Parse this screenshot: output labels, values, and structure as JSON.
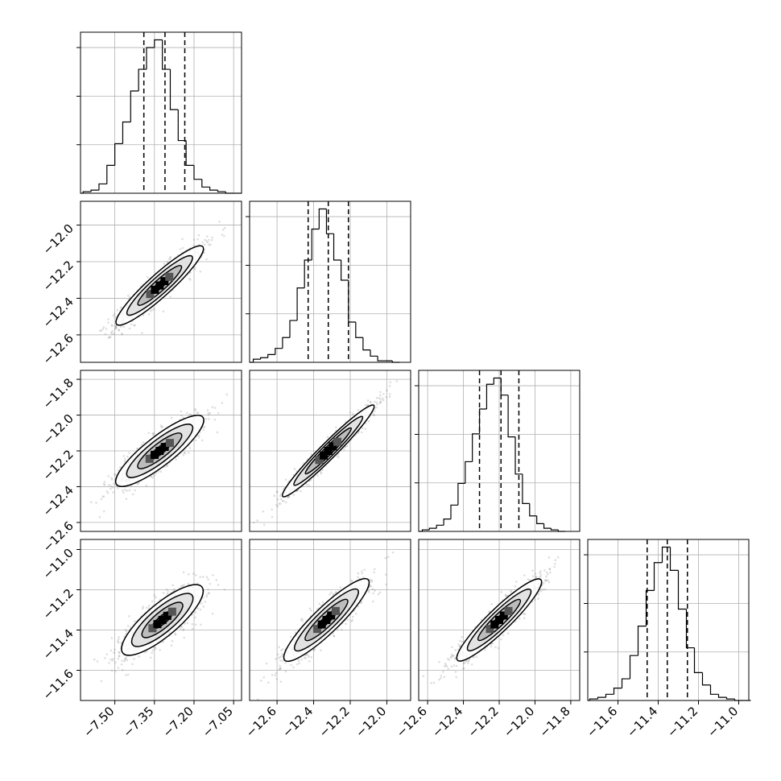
{
  "chart_data": {
    "type": "corner",
    "title": "",
    "parameters": [
      {
        "index": 0,
        "xlim": [
          -7.63,
          -7.02
        ],
        "quantiles": [
          -7.39,
          -7.31,
          -7.235
        ],
        "bins": [
          -7.62,
          -7.59,
          -7.56,
          -7.53,
          -7.5,
          -7.47,
          -7.44,
          -7.41,
          -7.38,
          -7.35,
          -7.32,
          -7.29,
          -7.26,
          -7.23,
          -7.2,
          -7.17,
          -7.14,
          -7.11,
          -7.08,
          -7.05
        ],
        "counts": [
          1,
          2,
          6,
          18,
          32,
          46,
          66,
          80,
          94,
          99,
          80,
          54,
          34,
          18,
          9,
          4,
          2,
          1,
          0,
          0
        ],
        "xticks": [
          -7.5,
          -7.35,
          -7.2,
          -7.05
        ],
        "xtick_labels": [
          "−7.50",
          "−7.35",
          "−7.20",
          "−7.05"
        ]
      },
      {
        "index": 1,
        "xlim": [
          -12.75,
          -11.87
        ],
        "quantiles": [
          -12.43,
          -12.32,
          -12.21
        ],
        "bins": [
          -12.73,
          -12.69,
          -12.65,
          -12.61,
          -12.57,
          -12.53,
          -12.49,
          -12.45,
          -12.41,
          -12.37,
          -12.33,
          -12.29,
          -12.25,
          -12.21,
          -12.17,
          -12.13,
          -12.09,
          -12.05,
          -12.01,
          -11.97
        ],
        "counts": [
          2,
          3,
          5,
          9,
          16,
          27,
          48,
          66,
          86,
          99,
          83,
          66,
          53,
          26,
          16,
          8,
          4,
          1,
          1,
          0
        ],
        "xticks": [
          -12.6,
          -12.4,
          -12.2,
          -12.0
        ],
        "xtick_labels": [
          "−12.6",
          "−12.4",
          "−12.2",
          "−12.0"
        ],
        "yticks": [
          -12.6,
          -12.4,
          -12.2,
          -12.0
        ],
        "ytick_labels": [
          "−12.6",
          "−12.4",
          "−12.2",
          "−12.0"
        ]
      },
      {
        "index": 2,
        "xlim": [
          -12.65,
          -11.75
        ],
        "quantiles": [
          -12.31,
          -12.19,
          -12.09
        ],
        "bins": [
          -12.63,
          -12.59,
          -12.55,
          -12.51,
          -12.47,
          -12.43,
          -12.39,
          -12.35,
          -12.31,
          -12.27,
          -12.23,
          -12.19,
          -12.15,
          -12.11,
          -12.07,
          -12.03,
          -11.99,
          -11.95,
          -11.91,
          -11.87
        ],
        "counts": [
          1,
          2,
          4,
          8,
          17,
          31,
          45,
          63,
          79,
          95,
          99,
          88,
          61,
          37,
          18,
          10,
          5,
          2,
          1,
          0
        ],
        "xticks": [
          -12.6,
          -12.4,
          -12.2,
          -12.0,
          -11.8
        ],
        "xtick_labels": [
          "−12.6",
          "−12.4",
          "−12.2",
          "−12.0",
          "−11.8"
        ],
        "yticks": [
          -12.6,
          -12.4,
          -12.2,
          -12.0,
          -11.8
        ],
        "ytick_labels": [
          "−12.6",
          "−12.4",
          "−12.2",
          "−12.0",
          "−11.8"
        ]
      },
      {
        "index": 3,
        "xlim": [
          -11.75,
          -10.95
        ],
        "quantiles": [
          -11.455,
          -11.355,
          -11.255
        ],
        "bins": [
          -11.74,
          -11.7,
          -11.66,
          -11.62,
          -11.58,
          -11.54,
          -11.5,
          -11.46,
          -11.42,
          -11.38,
          -11.34,
          -11.3,
          -11.26,
          -11.22,
          -11.18,
          -11.14,
          -11.1,
          -11.06,
          -11.02,
          -10.98
        ],
        "counts": [
          1,
          2,
          4,
          8,
          14,
          29,
          48,
          71,
          89,
          99,
          84,
          59,
          34,
          18,
          10,
          4,
          2,
          1,
          0,
          0
        ],
        "xticks": [
          -11.6,
          -11.4,
          -11.2,
          -11.0
        ],
        "xtick_labels": [
          "−11.6",
          "−11.4",
          "−11.2",
          "−11.0"
        ],
        "yticks": [
          -11.6,
          -11.4,
          -11.2,
          -11.0
        ],
        "ytick_labels": [
          "−11.6",
          "−11.4",
          "−11.2",
          "−11.0"
        ]
      }
    ],
    "pairs": [
      {
        "row": 1,
        "col": 0,
        "center": [
          -7.33,
          -12.33
        ],
        "angle_deg": 42,
        "sigma_major": 0.18,
        "sigma_minor": 0.035
      },
      {
        "row": 2,
        "col": 0,
        "center": [
          -7.33,
          -12.2
        ],
        "angle_deg": 38,
        "sigma_major": 0.17,
        "sigma_minor": 0.045
      },
      {
        "row": 2,
        "col": 1,
        "center": [
          -12.32,
          -12.2
        ],
        "angle_deg": 45,
        "sigma_major": 0.2,
        "sigma_minor": 0.025
      },
      {
        "row": 3,
        "col": 0,
        "center": [
          -7.32,
          -11.35
        ],
        "angle_deg": 40,
        "sigma_major": 0.16,
        "sigma_minor": 0.05
      },
      {
        "row": 3,
        "col": 1,
        "center": [
          -12.33,
          -11.35
        ],
        "angle_deg": 44,
        "sigma_major": 0.18,
        "sigma_minor": 0.04
      },
      {
        "row": 3,
        "col": 2,
        "center": [
          -12.2,
          -11.35
        ],
        "angle_deg": 44,
        "sigma_major": 0.18,
        "sigma_minor": 0.035
      }
    ],
    "grid": true,
    "colors": {
      "hist": "#000000",
      "points": "#808080",
      "contour": "#000000"
    }
  }
}
